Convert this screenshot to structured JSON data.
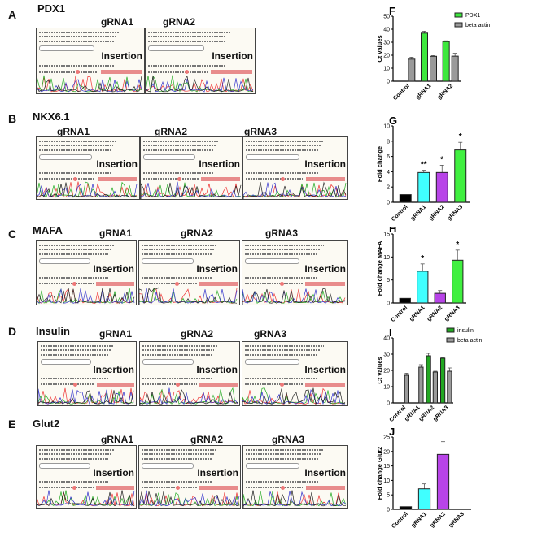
{
  "panels": [
    {
      "letter": "A",
      "gene": "PDX1",
      "grnas": [
        "gRNA1",
        "gRNA2"
      ],
      "insertion": "Insertion"
    },
    {
      "letter": "B",
      "gene": "NKX6.1",
      "grnas": [
        "gRNA1",
        "gRNA2",
        "gRNA3"
      ],
      "insertion": "Insertion"
    },
    {
      "letter": "C",
      "gene": "MAFA",
      "grnas": [
        "gRNA1",
        "gRNA2",
        "gRNA3"
      ],
      "insertion": "Insertion"
    },
    {
      "letter": "D",
      "gene": "Insulin",
      "grnas": [
        "gRNA1",
        "gRNA2",
        "gRNA3"
      ],
      "insertion": "Insertion"
    },
    {
      "letter": "E",
      "gene": "Glut2",
      "grnas": [
        "gRNA1",
        "gRNA2",
        "gRNA3"
      ],
      "insertion": "Insertion"
    }
  ],
  "chart_data": [
    {
      "letter": "F",
      "type": "bar",
      "grouped": true,
      "categories": [
        "Control",
        "gRNA1",
        "gRNA2"
      ],
      "series": [
        {
          "name": "PDX1",
          "color": "#3de83d",
          "values": [
            null,
            37,
            30.5
          ],
          "errors": [
            null,
            1.5,
            0.6
          ]
        },
        {
          "name": "beta actin",
          "color": "#9a9a9a",
          "values": [
            17,
            19.2,
            19.3
          ],
          "errors": [
            1.5,
            0.5,
            2.2
          ]
        }
      ],
      "ylabel": "Ct values",
      "ylim": [
        0,
        50
      ],
      "yticks": [
        0,
        10,
        20,
        30,
        40,
        50
      ],
      "legend": "top-right"
    },
    {
      "letter": "G",
      "type": "bar",
      "categories": [
        "Control",
        "gRNA1",
        "gRNA2",
        "gRNA3"
      ],
      "values": [
        1,
        3.9,
        3.9,
        6.85
      ],
      "errors": [
        0,
        0.3,
        0.95,
        1
      ],
      "colors": [
        "#000000",
        "#40ffff",
        "#b844e8",
        "#40f040"
      ],
      "significance": [
        "",
        "**",
        "*",
        "*"
      ],
      "ylabel": "Fold change",
      "ylim": [
        0,
        10
      ],
      "yticks": [
        0,
        2,
        4,
        6,
        8,
        10
      ]
    },
    {
      "letter": "H",
      "type": "bar",
      "categories": [
        "Control",
        "gRNA1",
        "gRNA2",
        "gRNA3"
      ],
      "values": [
        1,
        6.9,
        2.1,
        9.3
      ],
      "errors": [
        0,
        1.6,
        0.6,
        2.2
      ],
      "colors": [
        "#000000",
        "#40ffff",
        "#b844e8",
        "#40f040"
      ],
      "significance": [
        "",
        "*",
        "",
        "*"
      ],
      "ylabel": "Fold change MAFA",
      "ylim": [
        0,
        15
      ],
      "yticks": [
        0,
        5,
        10,
        15
      ]
    },
    {
      "letter": "I",
      "type": "bar",
      "grouped": true,
      "categories": [
        "Control",
        "gRNA1",
        "gRNA2",
        "gRNA3"
      ],
      "series": [
        {
          "name": "insulin",
          "color": "#22a822",
          "values": [
            null,
            null,
            29,
            27.5
          ],
          "errors": [
            null,
            null,
            1.5,
            0.5
          ]
        },
        {
          "name": "beta actin",
          "color": "#9a9a9a",
          "values": [
            17,
            22,
            19,
            19.5
          ],
          "errors": [
            1.3,
            1.5,
            0.5,
            2
          ]
        }
      ],
      "ylabel": "Ct values",
      "ylim": [
        0,
        40
      ],
      "yticks": [
        0,
        10,
        20,
        30,
        40
      ],
      "legend": "top-right"
    },
    {
      "letter": "J",
      "type": "bar",
      "categories": [
        "Control",
        "gRNA1",
        "gRNA2",
        "gRNA3"
      ],
      "values": [
        0.9,
        7.1,
        19,
        0
      ],
      "errors": [
        0,
        1.7,
        4.4,
        0
      ],
      "colors": [
        "#000000",
        "#40ffff",
        "#b844e8",
        "#40f040"
      ],
      "ylabel": "Fold change Glut2",
      "ylim": [
        0,
        25
      ],
      "yticks": [
        0,
        5,
        10,
        15,
        20,
        25
      ]
    }
  ]
}
